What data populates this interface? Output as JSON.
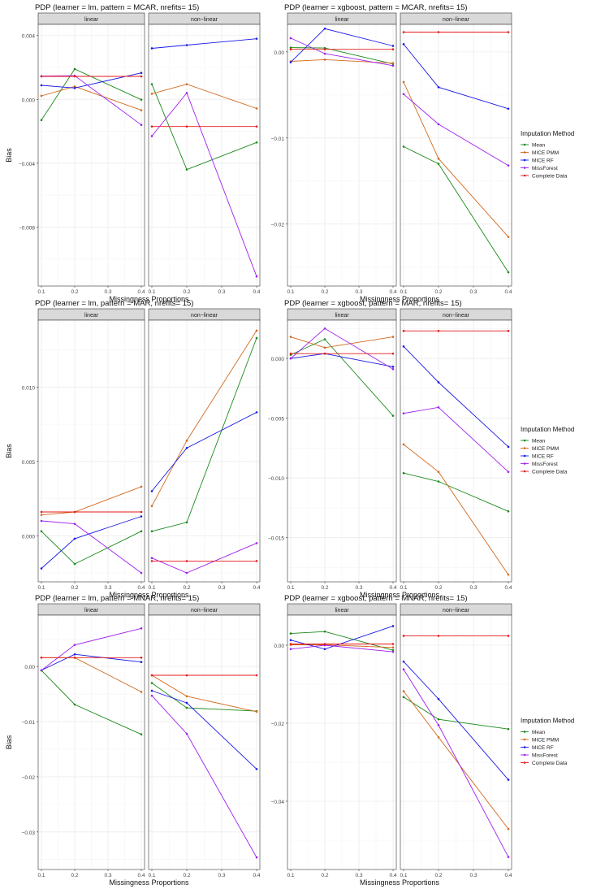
{
  "colors": {
    "mean": "#1a8a1a",
    "mice_pmm": "#d2691e",
    "mice_rf": "#1a1ae6",
    "missforest": "#a020f0",
    "complete": "#e61a1a",
    "strip_bg": "#d9d9d9",
    "grid": "#ebebeb"
  },
  "legend": {
    "title": "Imputation Method",
    "items": [
      {
        "key": "mean",
        "label": "Mean"
      },
      {
        "key": "mice_pmm",
        "label": "MICE PMM"
      },
      {
        "key": "mice_rf",
        "label": "MICE RF"
      },
      {
        "key": "missforest",
        "label": "MissForest"
      },
      {
        "key": "complete",
        "label": "Complete Data"
      }
    ]
  },
  "chart_data": [
    {
      "type": "line",
      "title": "PDP (learner = lm, pattern = MCAR, nrefits= 15)",
      "xlabel": "Missingness Proportions",
      "ylabel": "Bias",
      "x": [
        0.1,
        0.2,
        0.4
      ],
      "xticks": [
        "0.1",
        "0.2",
        "0.3",
        "0.4"
      ],
      "ylim": [
        -0.0117,
        0.0047
      ],
      "yticks": [
        0.004,
        0.0,
        -0.004,
        -0.008
      ],
      "ytick_labels": [
        "0.004",
        "0.000",
        "−0.004",
        "−0.008"
      ],
      "panels": [
        {
          "label": "linear",
          "series": [
            {
              "name": "Mean",
              "key": "mean",
              "values": [
                -0.0013,
                0.0019,
                -2e-05
              ]
            },
            {
              "name": "MICE PMM",
              "key": "mice_pmm",
              "values": [
                0.00022,
                0.00081,
                -0.00068
              ]
            },
            {
              "name": "MICE RF",
              "key": "mice_rf",
              "values": [
                0.00088,
                0.00071,
                0.00166
              ]
            },
            {
              "name": "MissForest",
              "key": "missforest",
              "values": [
                0.00146,
                0.00148,
                -0.0016
              ]
            },
            {
              "name": "Complete Data",
              "key": "complete",
              "values": [
                0.00144,
                0.00144,
                0.00144
              ]
            }
          ]
        },
        {
          "label": "non−linear",
          "series": [
            {
              "name": "Mean",
              "key": "mean",
              "values": [
                0.00095,
                -0.0044,
                -0.0027
              ]
            },
            {
              "name": "MICE PMM",
              "key": "mice_pmm",
              "values": [
                0.00035,
                0.00095,
                -0.00057
              ]
            },
            {
              "name": "MICE RF",
              "key": "mice_rf",
              "values": [
                0.0032,
                0.0034,
                0.0038
              ]
            },
            {
              "name": "MissForest",
              "key": "missforest",
              "values": [
                -0.0023,
                0.0004,
                -0.0111
              ]
            },
            {
              "name": "Complete Data",
              "key": "complete",
              "values": [
                -0.0017,
                -0.0017,
                -0.0017
              ]
            }
          ]
        }
      ]
    },
    {
      "type": "line",
      "title": "PDP (learner = xgboost, pattern = MCAR, nrefits= 15)",
      "xlabel": "Missingness Proportions",
      "ylabel": "",
      "x": [
        0.1,
        0.2,
        0.4
      ],
      "xticks": [
        "0.1",
        "0.2",
        "0.3",
        "0.4"
      ],
      "ylim": [
        -0.0272,
        0.0032
      ],
      "yticks": [
        0.0,
        -0.01,
        -0.02
      ],
      "ytick_labels": [
        "0.00",
        "−0.01",
        "−0.02"
      ],
      "panels": [
        {
          "label": "linear",
          "series": [
            {
              "name": "Mean",
              "key": "mean",
              "values": [
                0.0005,
                0.00045,
                -0.0014
              ]
            },
            {
              "name": "MICE PMM",
              "key": "mice_pmm",
              "values": [
                -0.0011,
                -0.0009,
                -0.0013
              ]
            },
            {
              "name": "MICE RF",
              "key": "mice_rf",
              "values": [
                -0.0012,
                0.0027,
                0.0007
              ]
            },
            {
              "name": "MissForest",
              "key": "missforest",
              "values": [
                0.0016,
                -0.0002,
                -0.0016
              ]
            },
            {
              "name": "Complete Data",
              "key": "complete",
              "values": [
                0.0003,
                0.0003,
                0.0003
              ]
            }
          ]
        },
        {
          "label": "non−linear",
          "series": [
            {
              "name": "Mean",
              "key": "mean",
              "values": [
                -0.011,
                -0.013,
                -0.0256
              ]
            },
            {
              "name": "MICE PMM",
              "key": "mice_pmm",
              "values": [
                -0.0035,
                -0.0124,
                -0.0215
              ]
            },
            {
              "name": "MICE RF",
              "key": "mice_rf",
              "values": [
                0.0009,
                -0.0041,
                -0.0066
              ]
            },
            {
              "name": "MissForest",
              "key": "missforest",
              "values": [
                -0.0049,
                -0.0084,
                -0.0132
              ]
            },
            {
              "name": "Complete Data",
              "key": "complete",
              "values": [
                0.0023,
                0.0023,
                0.0023
              ]
            }
          ]
        }
      ]
    },
    {
      "type": "line",
      "title": "PDP (learner = lm, pattern = MAR, nrefits= 15)",
      "xlabel": "Missingness Proportions",
      "ylabel": "Bias",
      "x": [
        0.1,
        0.2,
        0.4
      ],
      "xticks": [
        "0.1",
        "0.2",
        "0.3",
        "0.4"
      ],
      "ylim": [
        -0.0031,
        0.0145
      ],
      "yticks": [
        0.01,
        0.005,
        0.0
      ],
      "ytick_labels": [
        "0.010",
        "0.005",
        "0.000"
      ],
      "panels": [
        {
          "label": "linear",
          "series": [
            {
              "name": "Mean",
              "key": "mean",
              "values": [
                0.0003,
                -0.0019,
                0.0003
              ]
            },
            {
              "name": "MICE PMM",
              "key": "mice_pmm",
              "values": [
                0.0014,
                0.0016,
                0.0033
              ]
            },
            {
              "name": "MICE RF",
              "key": "mice_rf",
              "values": [
                -0.0022,
                -0.0002,
                0.0013
              ]
            },
            {
              "name": "MissForest",
              "key": "missforest",
              "values": [
                0.001,
                0.0008,
                -0.0025
              ]
            },
            {
              "name": "Complete Data",
              "key": "complete",
              "values": [
                0.0016,
                0.0016,
                0.0016
              ]
            }
          ]
        },
        {
          "label": "non−linear",
          "series": [
            {
              "name": "Mean",
              "key": "mean",
              "values": [
                0.0003,
                0.0009,
                0.0133
              ]
            },
            {
              "name": "MICE PMM",
              "key": "mice_pmm",
              "values": [
                0.002,
                0.0064,
                0.0138
              ]
            },
            {
              "name": "MICE RF",
              "key": "mice_rf",
              "values": [
                0.003,
                0.0059,
                0.0083
              ]
            },
            {
              "name": "MissForest",
              "key": "missforest",
              "values": [
                -0.0015,
                -0.0025,
                -0.0005
              ]
            },
            {
              "name": "Complete Data",
              "key": "complete",
              "values": [
                -0.0017,
                -0.0017,
                -0.0017
              ]
            }
          ]
        }
      ]
    },
    {
      "type": "line",
      "title": "PDP (learner = xgboost, pattern = MAR, nrefits= 15)",
      "xlabel": "Missingness Proportions",
      "ylabel": "",
      "x": [
        0.1,
        0.2,
        0.4
      ],
      "xticks": [
        "0.1",
        "0.2",
        "0.3",
        "0.4"
      ],
      "ylim": [
        -0.0187,
        0.0032
      ],
      "yticks": [
        0.0,
        -0.005,
        -0.01,
        -0.015
      ],
      "ytick_labels": [
        "0.000",
        "−0.005",
        "−0.010",
        "−0.015"
      ],
      "panels": [
        {
          "label": "linear",
          "series": [
            {
              "name": "Mean",
              "key": "mean",
              "values": [
                0.0003,
                0.0016,
                -0.0048
              ]
            },
            {
              "name": "MICE PMM",
              "key": "mice_pmm",
              "values": [
                0.0018,
                0.0009,
                0.0018
              ]
            },
            {
              "name": "MICE RF",
              "key": "mice_rf",
              "values": [
                0.0,
                0.0004,
                -0.0007
              ]
            },
            {
              "name": "MissForest",
              "key": "missforest",
              "values": [
                0.0,
                0.0025,
                -0.0009
              ]
            },
            {
              "name": "Complete Data",
              "key": "complete",
              "values": [
                0.0004,
                0.0004,
                0.0004
              ]
            }
          ]
        },
        {
          "label": "non−linear",
          "series": [
            {
              "name": "Mean",
              "key": "mean",
              "values": [
                -0.0096,
                -0.0103,
                -0.0128
              ]
            },
            {
              "name": "MICE PMM",
              "key": "mice_pmm",
              "values": [
                -0.0072,
                -0.0095,
                -0.0181
              ]
            },
            {
              "name": "MICE RF",
              "key": "mice_rf",
              "values": [
                0.001,
                -0.002,
                -0.0074
              ]
            },
            {
              "name": "MissForest",
              "key": "missforest",
              "values": [
                -0.0046,
                -0.0041,
                -0.0095
              ]
            },
            {
              "name": "Complete Data",
              "key": "complete",
              "values": [
                0.0023,
                0.0023,
                0.0023
              ]
            }
          ]
        }
      ]
    },
    {
      "type": "line",
      "title": "PDP (learner = lm, pattern = MNAR, nrefits= 15)",
      "xlabel": "Missingness Proportions",
      "ylabel": "Bias",
      "x": [
        0.1,
        0.2,
        0.4
      ],
      "xticks": [
        "0.1",
        "0.2",
        "0.3",
        "0.4"
      ],
      "ylim": [
        -0.0368,
        0.0093
      ],
      "yticks": [
        0.0,
        -0.01,
        -0.02,
        -0.03
      ],
      "ytick_labels": [
        "0.00",
        "−0.01",
        "−0.02",
        "−0.03"
      ],
      "panels": [
        {
          "label": "linear",
          "series": [
            {
              "name": "Mean",
              "key": "mean",
              "values": [
                -0.0007,
                -0.0069,
                -0.0123
              ]
            },
            {
              "name": "MICE PMM",
              "key": "mice_pmm",
              "values": [
                0.0016,
                0.0016,
                -0.0046
              ]
            },
            {
              "name": "MICE RF",
              "key": "mice_rf",
              "values": [
                -0.0007,
                0.0022,
                0.0008
              ]
            },
            {
              "name": "MissForest",
              "key": "missforest",
              "values": [
                -0.0007,
                0.0039,
                0.0069
              ]
            },
            {
              "name": "Complete Data",
              "key": "complete",
              "values": [
                0.0016,
                0.0016,
                0.0016
              ]
            }
          ]
        },
        {
          "label": "non−linear",
          "series": [
            {
              "name": "Mean",
              "key": "mean",
              "values": [
                -0.003,
                -0.0075,
                -0.0081
              ]
            },
            {
              "name": "MICE PMM",
              "key": "mice_pmm",
              "values": [
                -0.0016,
                -0.0054,
                -0.0082
              ]
            },
            {
              "name": "MICE RF",
              "key": "mice_rf",
              "values": [
                -0.0044,
                -0.0066,
                -0.0186
              ]
            },
            {
              "name": "MissForest",
              "key": "missforest",
              "values": [
                -0.0053,
                -0.0122,
                -0.0346
              ]
            },
            {
              "name": "Complete Data",
              "key": "complete",
              "values": [
                -0.0016,
                -0.0016,
                -0.0016
              ]
            }
          ]
        }
      ]
    },
    {
      "type": "line",
      "title": "PDP (learner = xgboost, pattern = MNAR, nrefits= 15)",
      "xlabel": "Missingness Proportions",
      "ylabel": "",
      "x": [
        0.1,
        0.2,
        0.4
      ],
      "xticks": [
        "0.1",
        "0.2",
        "0.3",
        "0.4"
      ],
      "ylim": [
        -0.0575,
        0.0077
      ],
      "yticks": [
        0.0,
        -0.02,
        -0.04
      ],
      "ytick_labels": [
        "0.00",
        "−0.02",
        "−0.04"
      ],
      "panels": [
        {
          "label": "linear",
          "series": [
            {
              "name": "Mean",
              "key": "mean",
              "values": [
                0.003,
                0.0035,
                -0.0013
              ]
            },
            {
              "name": "MICE PMM",
              "key": "mice_pmm",
              "values": [
                0.0001,
                0.0001,
                -0.0006
              ]
            },
            {
              "name": "MICE RF",
              "key": "mice_rf",
              "values": [
                0.0013,
                -0.001,
                0.0049
              ]
            },
            {
              "name": "MissForest",
              "key": "missforest",
              "values": [
                -0.001,
                0.0,
                -0.0017
              ]
            },
            {
              "name": "Complete Data",
              "key": "complete",
              "values": [
                0.0003,
                0.0003,
                0.0003
              ]
            }
          ]
        },
        {
          "label": "non−linear",
          "series": [
            {
              "name": "Mean",
              "key": "mean",
              "values": [
                -0.0133,
                -0.019,
                -0.0215
              ]
            },
            {
              "name": "MICE PMM",
              "key": "mice_pmm",
              "values": [
                -0.0118,
                -0.0236,
                -0.0471
              ]
            },
            {
              "name": "MICE RF",
              "key": "mice_rf",
              "values": [
                -0.0042,
                -0.0138,
                -0.0345
              ]
            },
            {
              "name": "MissForest",
              "key": "missforest",
              "values": [
                -0.0062,
                -0.0205,
                -0.0543
              ]
            },
            {
              "name": "Complete Data",
              "key": "complete",
              "values": [
                0.0024,
                0.0024,
                0.0024
              ]
            }
          ]
        }
      ]
    }
  ]
}
